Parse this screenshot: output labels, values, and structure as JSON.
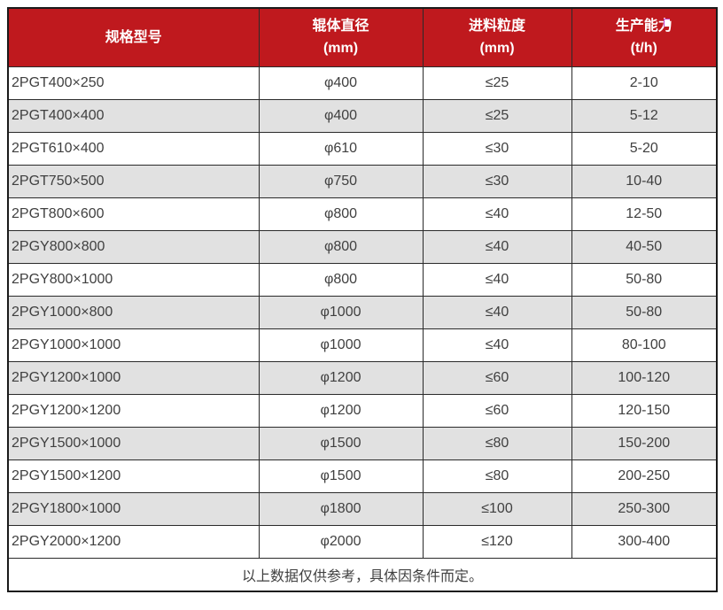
{
  "table": {
    "header": {
      "bg_color": "#bf191e",
      "text_color": "#ffffff",
      "columns": [
        {
          "label": "规格型号",
          "unit": ""
        },
        {
          "label": "辊体直径",
          "unit": "(mm)"
        },
        {
          "label": "进料粒度",
          "unit": "(mm)"
        },
        {
          "label": "生产能力",
          "unit": "(t/h)"
        }
      ]
    },
    "rows": [
      [
        "2PGT400×250",
        "φ400",
        "≤25",
        "2-10"
      ],
      [
        "2PGT400×400",
        "φ400",
        "≤25",
        "5-12"
      ],
      [
        "2PGT610×400",
        "φ610",
        "≤30",
        "5-20"
      ],
      [
        "2PGT750×500",
        "φ750",
        "≤30",
        "10-40"
      ],
      [
        "2PGT800×600",
        "φ800",
        "≤40",
        "12-50"
      ],
      [
        "2PGY800×800",
        "φ800",
        "≤40",
        "40-50"
      ],
      [
        "2PGY800×1000",
        "φ800",
        "≤40",
        "50-80"
      ],
      [
        "2PGY1000×800",
        "φ1000",
        "≤40",
        "50-80"
      ],
      [
        "2PGY1000×1000",
        "φ1000",
        "≤40",
        "80-100"
      ],
      [
        "2PGY1200×1000",
        "φ1200",
        "≤60",
        "100-120"
      ],
      [
        "2PGY1200×1200",
        "φ1200",
        "≤60",
        "120-150"
      ],
      [
        "2PGY1500×1000",
        "φ1500",
        "≤80",
        "150-200"
      ],
      [
        "2PGY1500×1200",
        "φ1500",
        "≤80",
        "200-250"
      ],
      [
        "2PGY1800×1000",
        "φ1800",
        "≤100",
        "250-300"
      ],
      [
        "2PGY2000×1200",
        "φ2000",
        "≤120",
        "300-400"
      ]
    ],
    "footer_note": "以上数据仅供参考，具体因条件而定。",
    "colors": {
      "row_bg": "#ffffff",
      "row_alt_bg": "#e1e1e1",
      "border": "#2a2a2a",
      "outer_border": "#1a1a1a",
      "body_text": "#404040"
    }
  }
}
